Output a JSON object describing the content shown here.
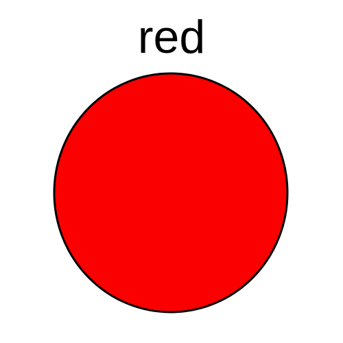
{
  "card": {
    "word": "red",
    "color_fill": "#fa0000",
    "color_stroke": "#000000",
    "text_color": "#000000"
  }
}
